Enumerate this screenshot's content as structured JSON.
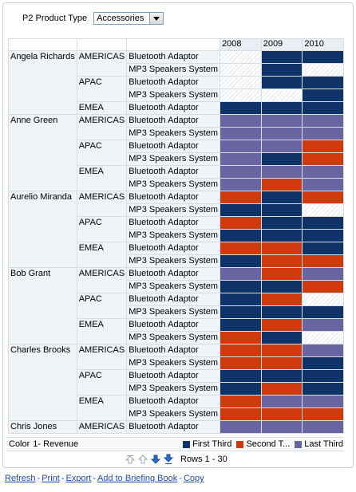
{
  "prompt": {
    "label": "P2 Product Type",
    "value": "Accessories"
  },
  "years": [
    "2008",
    "2009",
    "2010"
  ],
  "colors": {
    "first": "#0f3366",
    "second": "#cf3a0c",
    "last": "#6b64a3"
  },
  "rows": [
    {
      "person": "Angela Richards",
      "region": "AMERICAS",
      "product": "Bluetooth Adaptor",
      "cells": [
        "none",
        "first",
        "first"
      ]
    },
    {
      "person": "",
      "region": "",
      "product": "MP3 Speakers System",
      "cells": [
        "none",
        "first",
        "none"
      ]
    },
    {
      "person": "",
      "region": "APAC",
      "product": "Bluetooth Adaptor",
      "cells": [
        "none",
        "first",
        "first"
      ]
    },
    {
      "person": "",
      "region": "",
      "product": "MP3 Speakers System",
      "cells": [
        "none",
        "none",
        "first"
      ]
    },
    {
      "person": "",
      "region": "EMEA",
      "product": "Bluetooth Adaptor",
      "cells": [
        "first",
        "first",
        "first"
      ]
    },
    {
      "person": "Anne Green",
      "region": "AMERICAS",
      "product": "Bluetooth Adaptor",
      "cells": [
        "last",
        "last",
        "last"
      ]
    },
    {
      "person": "",
      "region": "",
      "product": "MP3 Speakers System",
      "cells": [
        "last",
        "last",
        "last"
      ]
    },
    {
      "person": "",
      "region": "APAC",
      "product": "Bluetooth Adaptor",
      "cells": [
        "last",
        "last",
        "second"
      ]
    },
    {
      "person": "",
      "region": "",
      "product": "MP3 Speakers System",
      "cells": [
        "last",
        "first",
        "second"
      ]
    },
    {
      "person": "",
      "region": "EMEA",
      "product": "Bluetooth Adaptor",
      "cells": [
        "last",
        "last",
        "last"
      ]
    },
    {
      "person": "",
      "region": "",
      "product": "MP3 Speakers System",
      "cells": [
        "last",
        "second",
        "last"
      ]
    },
    {
      "person": "Aurelio Miranda",
      "region": "AMERICAS",
      "product": "Bluetooth Adaptor",
      "cells": [
        "second",
        "first",
        "second"
      ]
    },
    {
      "person": "",
      "region": "",
      "product": "MP3 Speakers System",
      "cells": [
        "first",
        "first",
        "none"
      ]
    },
    {
      "person": "",
      "region": "APAC",
      "product": "Bluetooth Adaptor",
      "cells": [
        "second",
        "first",
        "first"
      ]
    },
    {
      "person": "",
      "region": "",
      "product": "MP3 Speakers System",
      "cells": [
        "first",
        "first",
        "first"
      ]
    },
    {
      "person": "",
      "region": "EMEA",
      "product": "Bluetooth Adaptor",
      "cells": [
        "second",
        "second",
        "first"
      ]
    },
    {
      "person": "",
      "region": "",
      "product": "MP3 Speakers System",
      "cells": [
        "first",
        "second",
        "second"
      ]
    },
    {
      "person": "Bob Grant",
      "region": "AMERICAS",
      "product": "Bluetooth Adaptor",
      "cells": [
        "last",
        "second",
        "last"
      ]
    },
    {
      "person": "",
      "region": "",
      "product": "MP3 Speakers System",
      "cells": [
        "first",
        "first",
        "second"
      ]
    },
    {
      "person": "",
      "region": "APAC",
      "product": "Bluetooth Adaptor",
      "cells": [
        "first",
        "second",
        "none"
      ]
    },
    {
      "person": "",
      "region": "",
      "product": "MP3 Speakers System",
      "cells": [
        "first",
        "first",
        "first"
      ]
    },
    {
      "person": "",
      "region": "EMEA",
      "product": "Bluetooth Adaptor",
      "cells": [
        "first",
        "second",
        "last"
      ]
    },
    {
      "person": "",
      "region": "",
      "product": "MP3 Speakers System",
      "cells": [
        "second",
        "first",
        "none"
      ]
    },
    {
      "person": "Charles Brooks",
      "region": "AMERICAS",
      "product": "Bluetooth Adaptor",
      "cells": [
        "second",
        "second",
        "last"
      ]
    },
    {
      "person": "",
      "region": "",
      "product": "MP3 Speakers System",
      "cells": [
        "second",
        "second",
        "first"
      ]
    },
    {
      "person": "",
      "region": "APAC",
      "product": "Bluetooth Adaptor",
      "cells": [
        "first",
        "first",
        "first"
      ]
    },
    {
      "person": "",
      "region": "",
      "product": "MP3 Speakers System",
      "cells": [
        "first",
        "second",
        "first"
      ]
    },
    {
      "person": "",
      "region": "EMEA",
      "product": "Bluetooth Adaptor",
      "cells": [
        "second",
        "last",
        "last"
      ]
    },
    {
      "person": "",
      "region": "",
      "product": "MP3 Speakers System",
      "cells": [
        "second",
        "second",
        "second"
      ]
    },
    {
      "person": "Chris Jones",
      "region": "AMERICAS",
      "product": "Bluetooth Adaptor",
      "cells": [
        "last",
        "last",
        "last"
      ]
    }
  ],
  "legend": {
    "label": "Color",
    "measure": "1- Revenue",
    "items": [
      {
        "label": "First Third",
        "key": "first"
      },
      {
        "label": "Second T...",
        "key": "second"
      },
      {
        "label": "Last Third",
        "key": "last"
      }
    ]
  },
  "pager": {
    "text": "Rows 1 - 30"
  },
  "links": [
    "Refresh",
    "Print",
    "Export",
    "Add to Briefing Book",
    "Copy"
  ]
}
